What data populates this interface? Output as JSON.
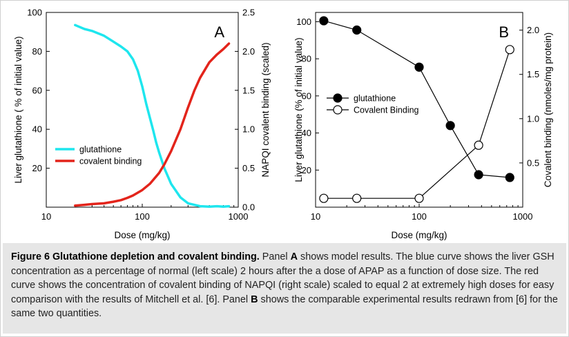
{
  "figure": {
    "caption": {
      "title": "Figure 6 Glutathione depletion and covalent binding.",
      "pre_a": " Panel ",
      "panel_a": "A",
      "mid": " shows model results. The blue curve shows the liver GSH concentration as a percentage of normal (left scale) 2 hours after the a dose of APAP as a function of dose size. The red curve shows the concentration of covalent binding of NAPQI (right scale) scaled to equal 2 at extremely high doses for easy comparison with the results of Mitchell et al. [6]. Panel ",
      "panel_b": "B",
      "post_b": " shows the comparable experimental results redrawn from [6] for the same two quantities."
    }
  },
  "chart_data": [
    {
      "panel": "A",
      "type": "line",
      "xscale": "log",
      "xlim": [
        10,
        1000
      ],
      "xticks": [
        10,
        100,
        1000
      ],
      "xtick_labels": [
        "10",
        "100",
        "1000"
      ],
      "xlabel": "Dose (mg/kg)",
      "ylabel_left": "Liver glutathione ( % of initial value)",
      "ylim_left": [
        0,
        100
      ],
      "yticks_left": [
        20,
        40,
        60,
        80,
        100
      ],
      "ytick_labels_left": [
        "20",
        "40",
        "60",
        "80",
        "100"
      ],
      "ylabel_right": "NAPQI covalent binding (scaled)",
      "ylim_right": [
        0,
        2.5
      ],
      "yticks_right": [
        0,
        0.5,
        1.0,
        1.5,
        2.0,
        2.5
      ],
      "ytick_labels_right": [
        "0.0",
        "0.5",
        "1.0",
        "1.5",
        "2.0",
        "2.5"
      ],
      "legend_position": "bottom-left",
      "grid": false,
      "series": [
        {
          "name": "glutathione",
          "axis": "left",
          "color": "#1ee6ee",
          "x": [
            20,
            25,
            30,
            40,
            50,
            60,
            70,
            80,
            90,
            100,
            110,
            120,
            130,
            140,
            150,
            170,
            200,
            250,
            300,
            400,
            500,
            600,
            700,
            800
          ],
          "y": [
            93.5,
            91.5,
            90.5,
            88,
            85,
            82.5,
            80,
            76,
            70,
            62,
            53,
            46,
            39.5,
            33,
            28,
            20,
            12,
            5,
            2,
            0.5,
            0.3,
            0.5,
            0.3,
            0.5
          ]
        },
        {
          "name": "covalent binding",
          "axis": "right",
          "color": "#e3241b",
          "x": [
            20,
            25,
            30,
            40,
            50,
            60,
            70,
            80,
            100,
            120,
            150,
            170,
            200,
            250,
            300,
            350,
            400,
            500,
            600,
            700,
            800
          ],
          "y": [
            0.02,
            0.03,
            0.04,
            0.05,
            0.07,
            0.09,
            0.12,
            0.15,
            0.22,
            0.3,
            0.44,
            0.55,
            0.72,
            1.0,
            1.28,
            1.5,
            1.66,
            1.86,
            1.96,
            2.03,
            2.1
          ]
        }
      ],
      "annotations": [
        {
          "text": "A",
          "position": "top-right"
        }
      ]
    },
    {
      "panel": "B",
      "type": "line",
      "xscale": "log",
      "xlim": [
        10,
        1000
      ],
      "xticks": [
        10,
        100,
        1000
      ],
      "xtick_labels": [
        "10",
        "100",
        "1000"
      ],
      "xlabel": "Dose (mg/kg)",
      "ylabel_left": "Liver glutathione (% of initial value)",
      "ylim_left": [
        0,
        105
      ],
      "yticks_left": [
        20,
        40,
        60,
        80,
        100
      ],
      "ytick_labels_left": [
        "20",
        "40",
        "60",
        "80",
        "100"
      ],
      "ylabel_right": "Covalent binding (nmoles/mg protein)",
      "ylim_right": [
        0,
        2.2
      ],
      "yticks_right": [
        0.5,
        1.0,
        1.5,
        2.0
      ],
      "ytick_labels_right": [
        "0.5",
        "1.0",
        "1.5",
        "2.0"
      ],
      "legend_position": "center-left",
      "grid": false,
      "series": [
        {
          "name": "glutathione",
          "axis": "left",
          "marker": "filled-circle",
          "x": [
            12,
            25,
            100,
            200,
            375,
            750
          ],
          "y": [
            100.5,
            95.5,
            75.5,
            44,
            17.5,
            16
          ]
        },
        {
          "name": "Covalent Binding",
          "axis": "right",
          "marker": "open-circle",
          "x": [
            12,
            25,
            100,
            375,
            750
          ],
          "y": [
            0.1,
            0.1,
            0.1,
            0.7,
            1.78
          ]
        }
      ],
      "annotations": [
        {
          "text": "B",
          "position": "top-right"
        }
      ]
    }
  ]
}
